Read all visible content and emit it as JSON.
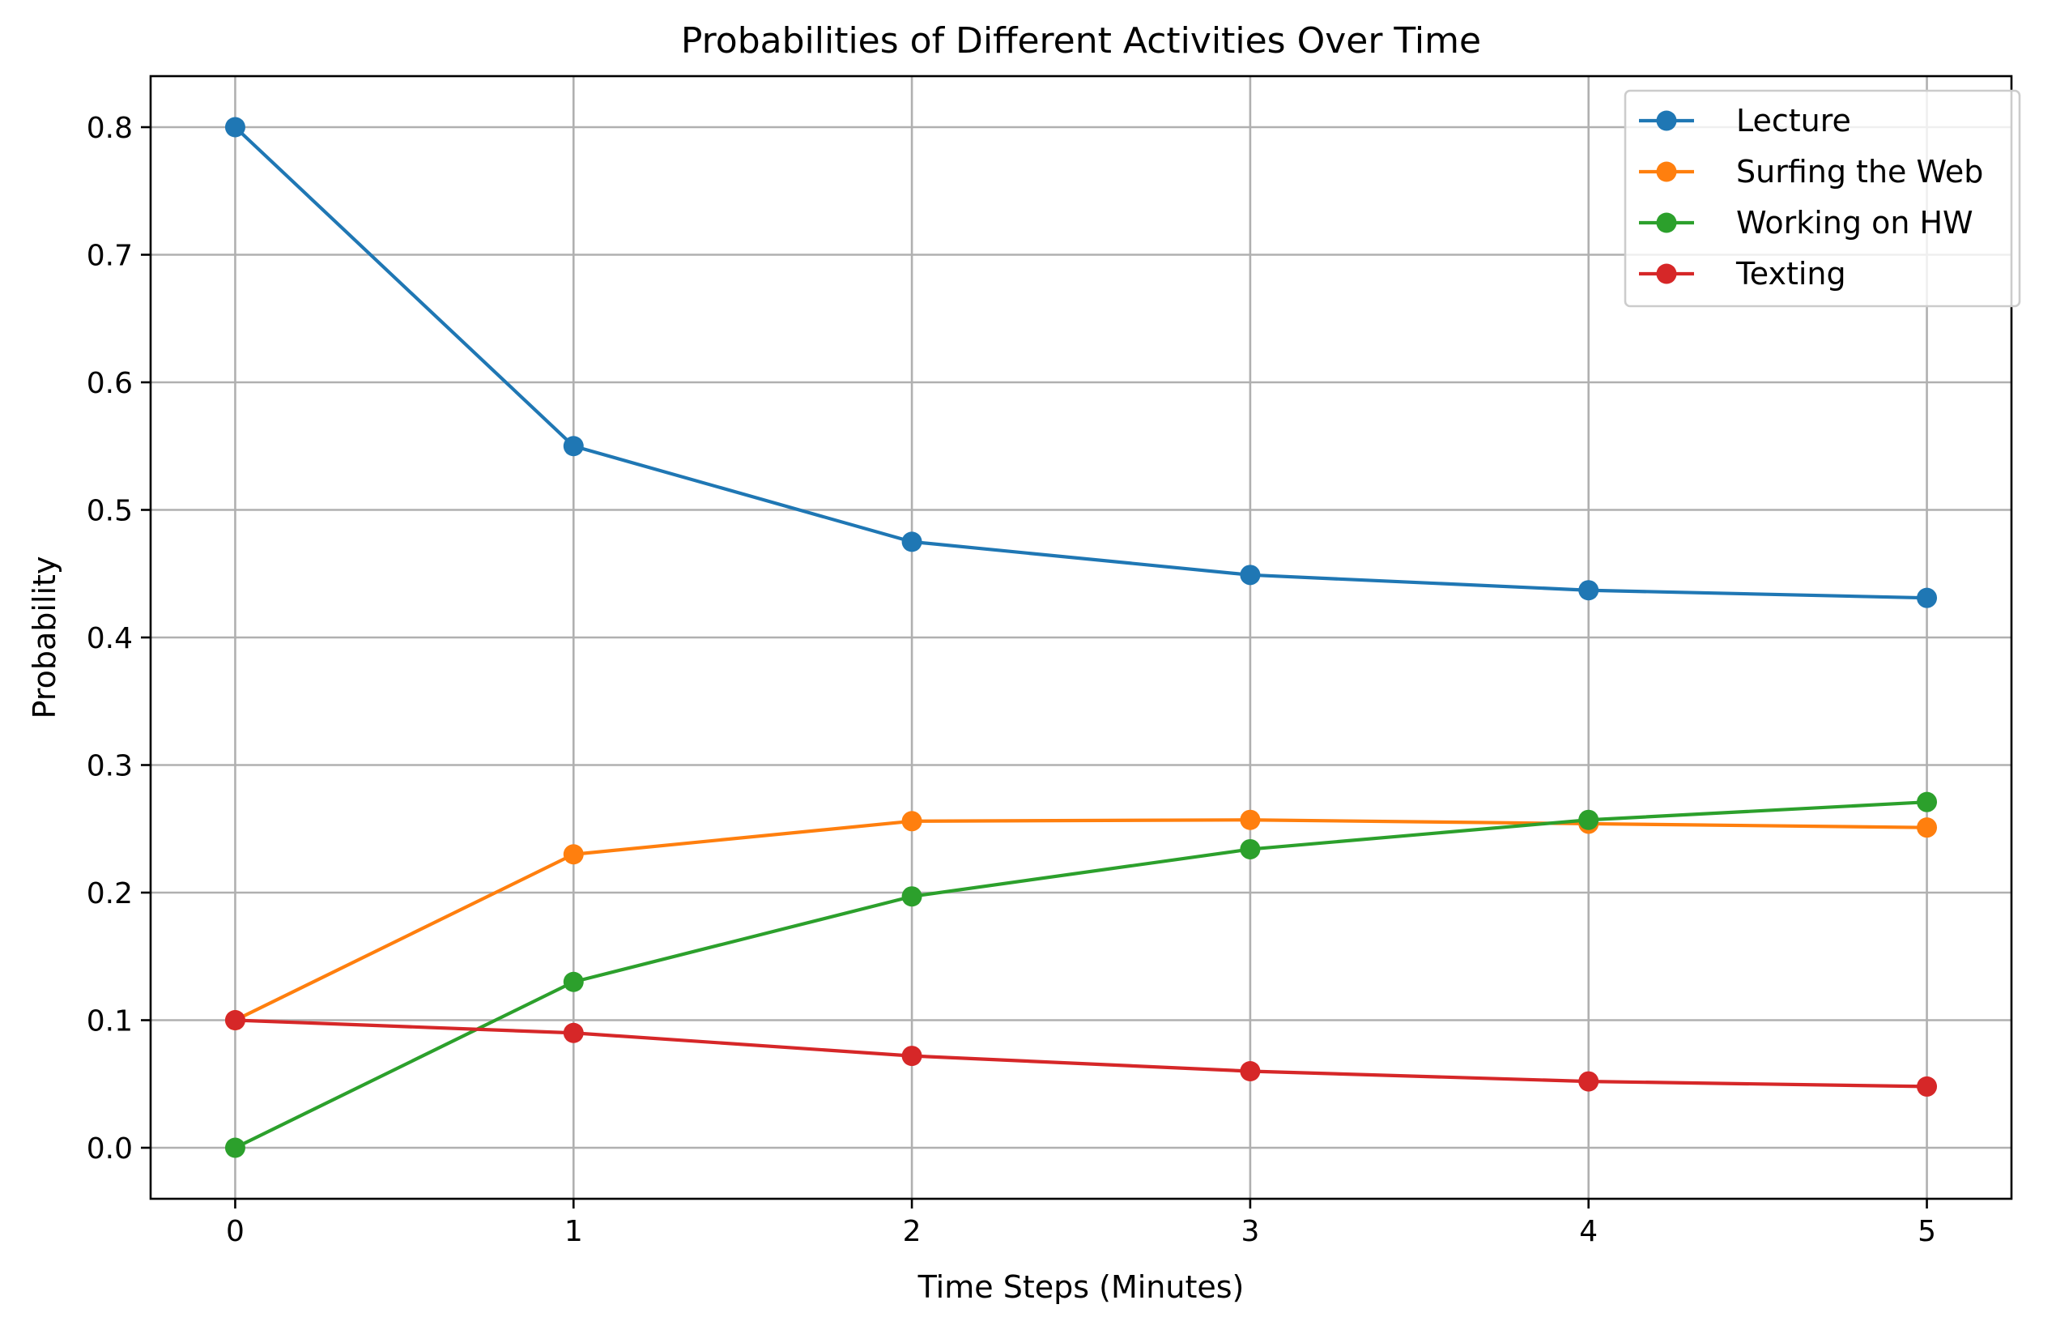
{
  "chart_data": {
    "type": "line",
    "title": "Probabilities of Different Activities Over Time",
    "xlabel": "Time Steps (Minutes)",
    "ylabel": "Probability",
    "x": [
      0,
      1,
      2,
      3,
      4,
      5
    ],
    "xticks": [
      "0",
      "1",
      "2",
      "3",
      "4",
      "5"
    ],
    "yticks": [
      "0.0",
      "0.1",
      "0.2",
      "0.3",
      "0.4",
      "0.5",
      "0.6",
      "0.7",
      "0.8"
    ],
    "xlim": [
      -0.25,
      5.25
    ],
    "ylim": [
      -0.04,
      0.84
    ],
    "grid": true,
    "legend_position": "top-right",
    "series": [
      {
        "name": "Lecture",
        "color": "#1f77b4",
        "values": [
          0.8,
          0.55,
          0.475,
          0.449,
          0.437,
          0.431
        ]
      },
      {
        "name": "Surfing the Web",
        "color": "#ff7f0e",
        "values": [
          0.1,
          0.23,
          0.256,
          0.257,
          0.254,
          0.251
        ]
      },
      {
        "name": "Working on HW",
        "color": "#2ca02c",
        "values": [
          0.0,
          0.13,
          0.197,
          0.234,
          0.257,
          0.271
        ]
      },
      {
        "name": "Texting",
        "color": "#d62728",
        "values": [
          0.1,
          0.09,
          0.072,
          0.06,
          0.052,
          0.048
        ]
      }
    ]
  }
}
